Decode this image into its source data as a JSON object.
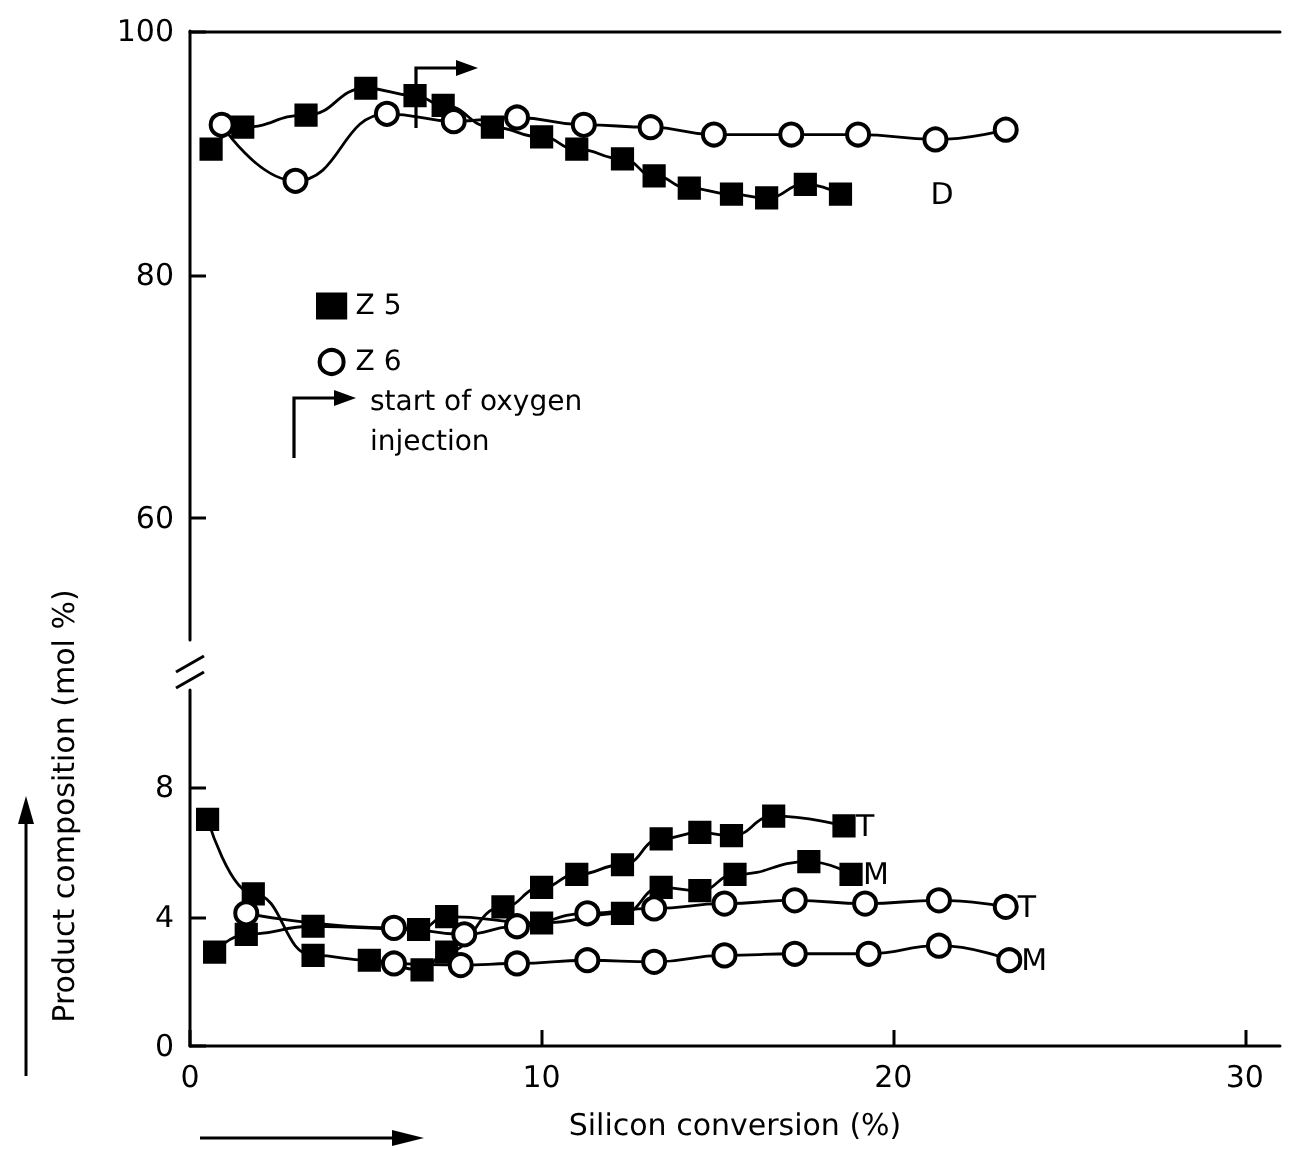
{
  "chart_data": [
    {
      "type": "line",
      "xlim": [
        0,
        31
      ],
      "xticks": [
        0,
        10,
        20,
        30
      ],
      "ylim": [
        50,
        100
      ],
      "yticks": [
        60,
        80,
        100
      ],
      "tick_labels": "y",
      "grid": false,
      "legend": "left",
      "series": [
        {
          "name": "Z 5",
          "color": "#000000",
          "marker": "square",
          "x": [
            0.6,
            1.5,
            3.3,
            5.0,
            6.4,
            7.2,
            8.6,
            10.0,
            11.0,
            12.3,
            13.2,
            14.2,
            15.4,
            16.4,
            17.5,
            18.5
          ],
          "values": [
            90.3,
            92.1,
            93.1,
            95.3,
            94.7,
            93.9,
            92.1,
            91.3,
            90.3,
            89.5,
            88.1,
            87.1,
            86.6,
            86.3,
            87.4,
            86.6
          ]
        },
        {
          "name": "Z 6",
          "color": "#000000",
          "marker": "circle",
          "x": [
            0.9,
            3.0,
            5.6,
            7.5,
            9.3,
            11.2,
            13.1,
            14.9,
            17.1,
            19.0,
            21.2,
            23.2
          ],
          "values": [
            92.3,
            87.7,
            93.2,
            92.6,
            92.9,
            92.3,
            92.1,
            91.5,
            91.5,
            91.5,
            91.1,
            91.9
          ]
        }
      ],
      "ref_lines": [
        {
          "axis": "x",
          "value": 6.4
        }
      ],
      "annotations": [
        {
          "text": "D",
          "x": 18.5,
          "y": 86.6
        },
        "start of oxygen injection"
      ]
    },
    {
      "type": "line",
      "xlim": [
        0,
        31
      ],
      "xticks": [
        0,
        10,
        20,
        30
      ],
      "ylim": [
        0,
        11
      ],
      "yticks": [
        0,
        4,
        8
      ],
      "grid": false,
      "xlabel": "Silicon conversion (%)",
      "ylabel": "Product composition (mol %)",
      "series": [
        {
          "name": "T",
          "color": "#000000",
          "marker": "square",
          "x": [
            0.5,
            1.8,
            3.5,
            5.1,
            6.6,
            7.3,
            8.9,
            10.0,
            11.0,
            12.3,
            13.4,
            14.5,
            15.4,
            16.6,
            18.6
          ],
          "values": [
            7.0,
            4.7,
            2.8,
            2.65,
            2.35,
            2.9,
            4.3,
            4.9,
            5.3,
            5.6,
            6.4,
            6.6,
            6.5,
            7.1,
            6.8
          ]
        },
        {
          "name": "M",
          "color": "#000000",
          "marker": "square",
          "x": [
            0.7,
            1.6,
            3.5,
            6.5,
            7.3,
            10.0,
            12.3,
            13.4,
            14.5,
            15.5,
            17.6,
            18.8
          ],
          "values": [
            2.9,
            3.45,
            3.7,
            3.6,
            4.0,
            3.8,
            4.1,
            4.9,
            4.8,
            5.3,
            5.7,
            5.3
          ]
        },
        {
          "name": "T",
          "color": "#000000",
          "marker": "circle",
          "x": [
            1.6,
            5.8,
            7.8,
            9.3,
            11.3,
            13.2,
            15.2,
            17.2,
            19.2,
            21.3,
            23.2
          ],
          "values": [
            4.1,
            3.65,
            3.45,
            3.7,
            4.1,
            4.25,
            4.4,
            4.5,
            4.4,
            4.5,
            4.3
          ]
        },
        {
          "name": "M",
          "color": "#000000",
          "marker": "circle",
          "x": [
            5.8,
            7.7,
            9.3,
            11.3,
            13.2,
            15.2,
            17.2,
            19.3,
            21.3,
            23.3
          ],
          "values": [
            2.55,
            2.5,
            2.55,
            2.65,
            2.6,
            2.8,
            2.85,
            2.85,
            3.1,
            2.65
          ]
        }
      ]
    }
  ]
}
